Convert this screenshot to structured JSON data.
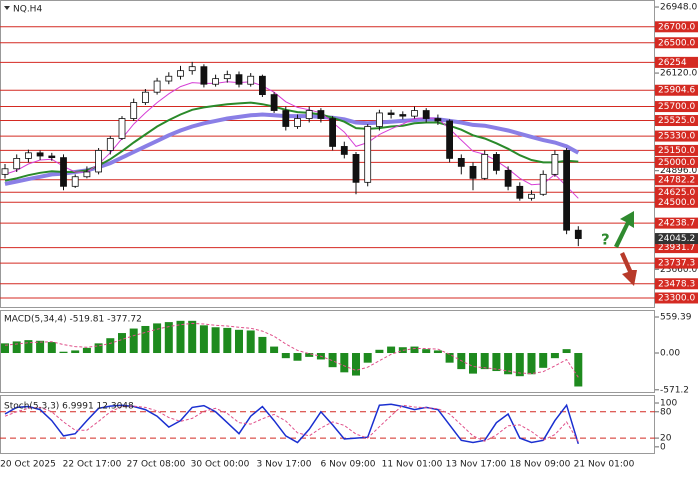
{
  "chart_data": [
    {
      "type": "candlestick",
      "title": "NQ.H4",
      "ylim": [
        23187,
        27036
      ],
      "yticks": [
        {
          "value": 26948,
          "label": "26948.0"
        },
        {
          "value": 26120,
          "label": "26120.0"
        },
        {
          "value": 24896,
          "label": "24896.0"
        },
        {
          "value": 23660,
          "label": "23660.0"
        }
      ],
      "levels": [
        {
          "value": 26700,
          "label": "26700.0"
        },
        {
          "value": 26500,
          "label": "26500.0"
        },
        26254,
        25904.6,
        {
          "value": 25700,
          "label": "25700.0"
        },
        {
          "value": 25525,
          "label": "25525.0"
        },
        {
          "value": 25330,
          "label": "25330.0"
        },
        {
          "value": 25150,
          "label": "25150.0"
        },
        {
          "value": 25000,
          "label": "25000.0"
        },
        24782.2,
        {
          "value": 24625,
          "label": "24625.0"
        },
        {
          "value": 24500,
          "label": "24500.0"
        },
        24238.7,
        23931.7,
        23737.3,
        23478.3,
        {
          "value": 23300,
          "label": "23300.0"
        }
      ],
      "level_color": "#d42a22",
      "current_price": 24045.2,
      "open": [
        24850,
        24920,
        25050,
        25120,
        25080,
        25060,
        24700,
        24820,
        24880,
        25150,
        25300,
        25550,
        25750,
        25880,
        26020,
        26080,
        26150,
        26200,
        25980,
        26050,
        26100,
        25980,
        26080,
        25850,
        25650,
        25450,
        25550,
        25650,
        25550,
        25200,
        25100,
        24750,
        25450,
        25620,
        25600,
        25580,
        25650,
        25550,
        25520,
        25050,
        24950,
        24800,
        25100,
        24900,
        24700,
        24550,
        24600,
        24850,
        25150,
        24150
      ],
      "high": [
        24980,
        25100,
        25160,
        25150,
        25120,
        25100,
        24850,
        24950,
        25180,
        25330,
        25580,
        25800,
        25920,
        26060,
        26130,
        26210,
        26260,
        26230,
        26100,
        26150,
        26140,
        26120,
        26100,
        25880,
        25700,
        25600,
        25700,
        25680,
        25580,
        25260,
        25130,
        25480,
        25660,
        25660,
        25640,
        25700,
        25680,
        25600,
        25540,
        25100,
        25000,
        25150,
        25130,
        24950,
        24750,
        24650,
        24900,
        25150,
        25180,
        24200
      ],
      "low": [
        24800,
        24880,
        25000,
        25030,
        25020,
        24650,
        24680,
        24800,
        24850,
        25100,
        25280,
        25520,
        25720,
        25850,
        25980,
        26040,
        26100,
        25940,
        25950,
        26000,
        25940,
        25950,
        25820,
        25620,
        25400,
        25420,
        25500,
        25500,
        25150,
        25050,
        24600,
        24700,
        25400,
        25550,
        25540,
        25550,
        25500,
        25470,
        25000,
        24850,
        24650,
        24780,
        24850,
        24650,
        24520,
        24520,
        24580,
        24820,
        24100,
        23950
      ],
      "close": [
        24920,
        25050,
        25120,
        25080,
        25060,
        24700,
        24820,
        24880,
        25150,
        25300,
        25550,
        25750,
        25880,
        26020,
        26080,
        26150,
        26200,
        25980,
        26050,
        26100,
        25980,
        26080,
        25850,
        25650,
        25450,
        25550,
        25650,
        25550,
        25200,
        25100,
        24750,
        25450,
        25620,
        25600,
        25580,
        25650,
        25550,
        25520,
        25050,
        24950,
        24800,
        25100,
        24900,
        24700,
        24550,
        24600,
        24850,
        25100,
        24150,
        24045
      ],
      "series": [
        {
          "color": "#8a7fe6",
          "values": [
            24730,
            24760,
            24790,
            24820,
            24850,
            24860,
            24880,
            24900,
            24940,
            24990,
            25060,
            25130,
            25200,
            25270,
            25340,
            25400,
            25450,
            25490,
            25520,
            25550,
            25570,
            25590,
            25600,
            25590,
            25580,
            25580,
            25580,
            25570,
            25560,
            25540,
            25500,
            25490,
            25500,
            25510,
            25520,
            25530,
            25540,
            25540,
            25520,
            25500,
            25470,
            25460,
            25430,
            25400,
            25360,
            25320,
            25280,
            25250,
            25200,
            25120
          ]
        },
        {
          "color": "#2a8a2a",
          "values": [
            24770,
            24800,
            24840,
            24870,
            24890,
            24880,
            24880,
            24900,
            24960,
            25040,
            25140,
            25250,
            25350,
            25450,
            25530,
            25600,
            25660,
            25690,
            25710,
            25730,
            25740,
            25750,
            25730,
            25700,
            25660,
            25630,
            25620,
            25600,
            25560,
            25510,
            25430,
            25420,
            25430,
            25450,
            25460,
            25490,
            25500,
            25500,
            25460,
            25410,
            25340,
            25300,
            25240,
            25170,
            25090,
            25030,
            25000,
            25000,
            25020,
            25010
          ]
        },
        {
          "color": "#d63fd6",
          "values": [
            24850,
            24900,
            24980,
            25030,
            25040,
            24950,
            24880,
            24880,
            24980,
            25120,
            25300,
            25480,
            25620,
            25750,
            25860,
            25950,
            26000,
            25990,
            25990,
            26010,
            26000,
            26010,
            25960,
            25880,
            25760,
            25690,
            25660,
            25620,
            25500,
            25380,
            25200,
            25250,
            25350,
            25420,
            25480,
            25550,
            25560,
            25550,
            25420,
            25280,
            25140,
            25100,
            25020,
            24920,
            24800,
            24720,
            24730,
            24850,
            24700,
            24550
          ]
        }
      ]
    },
    {
      "type": "bar",
      "title": "MACD(5,34,4) -519.81 -377.72",
      "ylim": [
        -621,
        668
      ],
      "yticks": [
        559.39,
        {
          "value": 0,
          "label": "0.00"
        },
        -571.2
      ],
      "color": "#1e8a1e",
      "values": [
        150,
        180,
        200,
        190,
        170,
        20,
        40,
        80,
        150,
        230,
        310,
        380,
        420,
        460,
        480,
        500,
        500,
        430,
        400,
        390,
        360,
        350,
        250,
        100,
        -80,
        -120,
        -60,
        -100,
        -220,
        -300,
        -350,
        -150,
        50,
        100,
        90,
        100,
        60,
        40,
        -150,
        -250,
        -320,
        -250,
        -280,
        -330,
        -360,
        -330,
        -230,
        -80,
        60,
        -519.81
      ],
      "signal": {
        "color": "#e0508a",
        "values": [
          120,
          140,
          160,
          170,
          175,
          130,
          100,
          90,
          110,
          150,
          210,
          270,
          320,
          370,
          410,
          440,
          460,
          450,
          430,
          420,
          400,
          385,
          340,
          260,
          140,
          40,
          -10,
          -50,
          -120,
          -200,
          -270,
          -220,
          -120,
          -20,
          40,
          70,
          70,
          60,
          -20,
          -120,
          -210,
          -230,
          -250,
          -280,
          -310,
          -320,
          -290,
          -200,
          -100,
          -377.72
        ]
      }
    },
    {
      "type": "line",
      "title": "Stoch(5,3,3) 6.9991 12.3048",
      "ylim": [
        -14,
        116
      ],
      "yticks": [
        100,
        80,
        20,
        0
      ],
      "level_lines": [
        80,
        20
      ],
      "level_color": "#d42a22",
      "series": [
        {
          "color": "#1a2fd0",
          "values": [
            75,
            90,
            92,
            85,
            60,
            25,
            30,
            60,
            88,
            93,
            95,
            92,
            85,
            70,
            45,
            60,
            90,
            94,
            80,
            55,
            30,
            70,
            92,
            60,
            25,
            10,
            40,
            80,
            50,
            18,
            20,
            22,
            95,
            97,
            92,
            85,
            90,
            85,
            50,
            15,
            10,
            15,
            55,
            75,
            20,
            10,
            15,
            60,
            95,
            6.9991
          ]
        },
        {
          "color": "#e0508a",
          "values": [
            70,
            80,
            88,
            90,
            80,
            57,
            38,
            38,
            58,
            80,
            92,
            93,
            90,
            82,
            67,
            58,
            65,
            81,
            88,
            76,
            55,
            52,
            64,
            74,
            59,
            32,
            25,
            43,
            57,
            49,
            29,
            20,
            46,
            71,
            95,
            91,
            89,
            87,
            75,
            50,
            25,
            13,
            27,
            48,
            50,
            35,
            15,
            28,
            57,
            12.3048
          ]
        }
      ],
      "x_labels": [
        "20 Oct 2025",
        "22 Oct 17:00",
        "27 Oct 08:00",
        "30 Oct 00:00",
        "3 Nov 17:00",
        "6 Nov 09:00",
        "11 Nov 01:00",
        "13 Nov 17:00",
        "18 Nov 09:00",
        "21 Nov 01:00"
      ]
    }
  ]
}
